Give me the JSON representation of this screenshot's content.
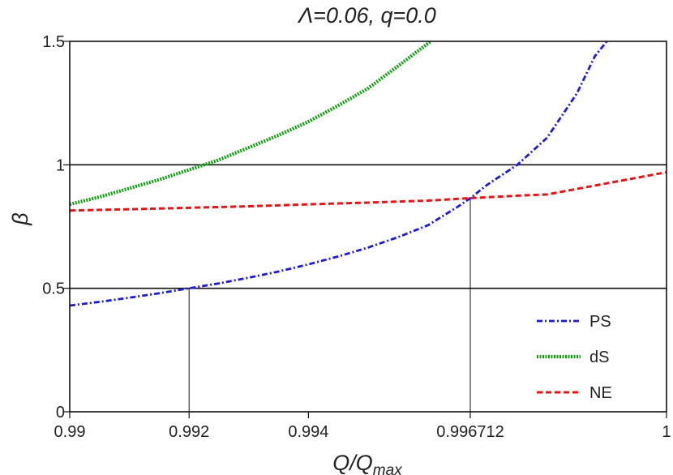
{
  "chart_data": {
    "type": "line",
    "title": "Λ=0.06, q=0.0",
    "xlabel": "Q/Q",
    "xlabel_sub": "max",
    "ylabel": "β",
    "xlim": [
      0.99,
      1.0
    ],
    "ylim": [
      0,
      1.5
    ],
    "x_ticks": [
      {
        "value": 0.99,
        "label": "0.99"
      },
      {
        "value": 0.992,
        "label": "0.992"
      },
      {
        "value": 0.994,
        "label": "0.994"
      },
      {
        "value": 0.996712,
        "label": "0.996712"
      },
      {
        "value": 1.0,
        "label": "1"
      }
    ],
    "y_ticks": [
      {
        "value": 0,
        "label": "0"
      },
      {
        "value": 0.5,
        "label": "0.5"
      },
      {
        "value": 1.0,
        "label": "1"
      },
      {
        "value": 1.5,
        "label": "1.5"
      }
    ],
    "horizontal_lines": [
      0.5,
      1.0
    ],
    "drop_lines": [
      {
        "x": 0.992,
        "y": 0.5
      },
      {
        "x": 0.996712,
        "y": 0.865
      }
    ],
    "legend_position": "bottom-right",
    "series": [
      {
        "name": "PS",
        "color": "#1a1ae0",
        "dash": "dash-dot",
        "x": [
          0.99,
          0.9905,
          0.991,
          0.9915,
          0.992,
          0.9925,
          0.993,
          0.9935,
          0.994,
          0.9945,
          0.995,
          0.9955,
          0.996,
          0.9965,
          0.996712,
          0.997,
          0.9975,
          0.998,
          0.9985,
          0.9988,
          0.999
        ],
        "y": [
          0.43,
          0.445,
          0.462,
          0.48,
          0.5,
          0.52,
          0.543,
          0.568,
          0.597,
          0.629,
          0.665,
          0.707,
          0.755,
          0.83,
          0.865,
          0.92,
          1.0,
          1.11,
          1.29,
          1.44,
          1.5
        ]
      },
      {
        "name": "dS",
        "color": "#10a010",
        "dash": "dotted",
        "x": [
          0.99,
          0.9905,
          0.991,
          0.9915,
          0.992,
          0.9925,
          0.993,
          0.9935,
          0.994,
          0.9945,
          0.995,
          0.9955,
          0.99605
        ],
        "y": [
          0.84,
          0.87,
          0.905,
          0.94,
          0.98,
          1.02,
          1.07,
          1.12,
          1.175,
          1.24,
          1.31,
          1.4,
          1.5
        ]
      },
      {
        "name": "NE",
        "color": "#ee1111",
        "dash": "dashed",
        "x": [
          0.99,
          0.991,
          0.992,
          0.993,
          0.994,
          0.995,
          0.996,
          0.996712,
          0.9975,
          0.998,
          0.999,
          1.0
        ],
        "y": [
          0.815,
          0.82,
          0.826,
          0.832,
          0.84,
          0.847,
          0.855,
          0.865,
          0.875,
          0.88,
          0.925,
          0.97
        ]
      }
    ]
  }
}
